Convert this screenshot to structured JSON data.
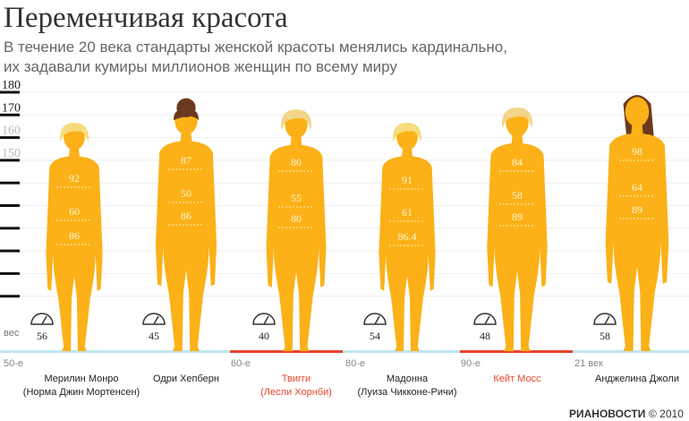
{
  "header": {
    "title": "Переменчивая красота",
    "subtitle": [
      "В течение 20 века стандарты женской красоты менялись кардинально,",
      "их задавали кумиры миллионов женщин по всему миру"
    ]
  },
  "scale": {
    "labels": [
      "180",
      "170",
      "160",
      "150"
    ],
    "weight_label": "вес"
  },
  "eras": [
    "50-е",
    "60-е",
    "80-е",
    "90-е",
    "21 век"
  ],
  "women": [
    {
      "name": [
        "Мерилин Монро",
        "(Норма Джин Мортенсен)"
      ],
      "measurements": [
        "92",
        "60",
        "86"
      ],
      "weight": "56",
      "hair": "#f6dc7c",
      "name_color": "#222222"
    },
    {
      "name": [
        "Одри Хепберн"
      ],
      "measurements": [
        "87",
        "50",
        "86"
      ],
      "weight": "45",
      "hair": "#6b3a1e",
      "name_color": "#222222"
    },
    {
      "name": [
        "Твигги",
        "(Лесли Хорнби)"
      ],
      "measurements": [
        "80",
        "55",
        "80"
      ],
      "weight": "40",
      "hair": "#f3d68a",
      "name_color": "#e8452c"
    },
    {
      "name": [
        "Мадонна",
        "(Луиза Чикконе-Ричи)"
      ],
      "measurements": [
        "91",
        "61",
        "86.4"
      ],
      "weight": "54",
      "hair": "#f6dc7c",
      "name_color": "#222222"
    },
    {
      "name": [
        "Кейт Мосс"
      ],
      "measurements": [
        "84",
        "58",
        "89"
      ],
      "weight": "48",
      "hair": "#f3d68a",
      "name_color": "#e8452c"
    },
    {
      "name": [
        "Анджелина Джоли"
      ],
      "measurements": [
        "98",
        "64",
        "89"
      ],
      "weight": "58",
      "hair": "#6b3a1e",
      "name_color": "#222222"
    }
  ],
  "footer": {
    "brand": "РИАНОВОСТИ",
    "copyright": "© 2010"
  }
}
